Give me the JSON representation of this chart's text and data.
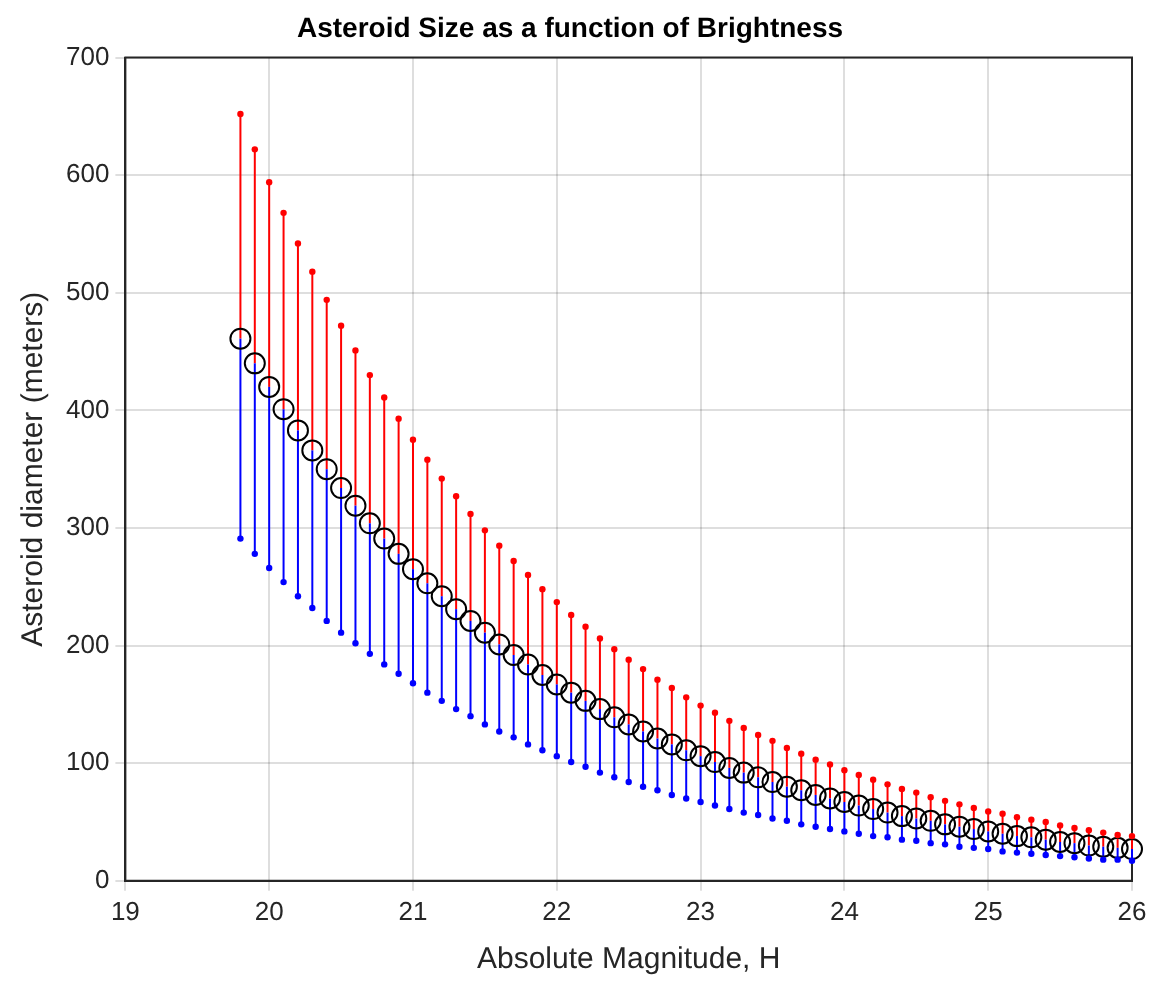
{
  "chart_data": {
    "type": "scatter",
    "title": "Asteroid Size as a function of Brightness",
    "xlabel": "Absolute Magnitude, H",
    "ylabel": "Asteroid diameter (meters)",
    "x": [
      19.8,
      19.9,
      20.0,
      20.1,
      20.2,
      20.3,
      20.4,
      20.5,
      20.6,
      20.7,
      20.8,
      20.9,
      21.0,
      21.1,
      21.2,
      21.3,
      21.4,
      21.5,
      21.6,
      21.7,
      21.8,
      21.9,
      22.0,
      22.1,
      22.2,
      22.3,
      22.4,
      22.5,
      22.6,
      22.7,
      22.8,
      22.9,
      23.0,
      23.1,
      23.2,
      23.3,
      23.4,
      23.5,
      23.6,
      23.7,
      23.8,
      23.9,
      24.0,
      24.1,
      24.2,
      24.3,
      24.4,
      24.5,
      24.6,
      24.7,
      24.8,
      24.9,
      25.0,
      25.1,
      25.2,
      25.3,
      25.4,
      25.5,
      25.6,
      25.7,
      25.8,
      25.9,
      26.0
    ],
    "series": [
      {
        "color": "#ff0000",
        "values": [
          652,
          622,
          594,
          568,
          542,
          518,
          494,
          472,
          451,
          430,
          411,
          393,
          375,
          358,
          342,
          327,
          312,
          298,
          285,
          272,
          260,
          248,
          237,
          226,
          216,
          206,
          197,
          188,
          180,
          171,
          164,
          156,
          149,
          143,
          136,
          130,
          124,
          119,
          113,
          108,
          103,
          99,
          94,
          90,
          86,
          82,
          78,
          75,
          71,
          68,
          65,
          62,
          59,
          57,
          54,
          52,
          50,
          47,
          45,
          43,
          41,
          39,
          38
        ],
        "errors": [
          [
            461,
            652
          ],
          [
            440,
            622
          ],
          [
            420,
            594
          ],
          [
            401,
            568
          ],
          [
            383,
            542
          ],
          [
            366,
            518
          ],
          [
            350,
            494
          ],
          [
            334,
            472
          ],
          [
            319,
            451
          ],
          [
            304,
            430
          ],
          [
            291,
            411
          ],
          [
            278,
            393
          ],
          [
            265,
            375
          ],
          [
            253,
            358
          ],
          [
            242,
            342
          ],
          [
            231,
            327
          ],
          [
            221,
            312
          ],
          [
            211,
            298
          ],
          [
            201,
            285
          ],
          [
            192,
            272
          ],
          [
            184,
            260
          ],
          [
            175,
            248
          ],
          [
            167,
            237
          ],
          [
            160,
            226
          ],
          [
            153,
            216
          ],
          [
            146,
            206
          ],
          [
            139,
            197
          ],
          [
            133,
            188
          ],
          [
            127,
            180
          ],
          [
            121,
            171
          ],
          [
            116,
            164
          ],
          [
            111,
            156
          ],
          [
            106,
            149
          ],
          [
            101,
            143
          ],
          [
            96,
            136
          ],
          [
            92,
            130
          ],
          [
            88,
            124
          ],
          [
            84,
            119
          ],
          [
            80,
            113
          ],
          [
            77,
            108
          ],
          [
            73,
            103
          ],
          [
            70,
            99
          ],
          [
            67,
            94
          ],
          [
            64,
            90
          ],
          [
            61,
            86
          ],
          [
            58,
            82
          ],
          [
            55,
            78
          ],
          [
            53,
            75
          ],
          [
            51,
            71
          ],
          [
            48,
            68
          ],
          [
            46,
            65
          ],
          [
            44,
            62
          ],
          [
            42,
            59
          ],
          [
            40,
            57
          ],
          [
            38,
            54
          ],
          [
            37,
            52
          ],
          [
            35,
            50
          ],
          [
            33,
            47
          ],
          [
            32,
            45
          ],
          [
            30,
            43
          ],
          [
            29,
            41
          ],
          [
            28,
            39
          ],
          [
            27,
            38
          ]
        ]
      },
      {
        "color": "#0000ff",
        "values": [
          291,
          278,
          266,
          254,
          242,
          232,
          221,
          211,
          202,
          193,
          184,
          176,
          168,
          160,
          153,
          146,
          140,
          133,
          127,
          122,
          116,
          111,
          106,
          101,
          97,
          92,
          88,
          84,
          80,
          77,
          73,
          70,
          67,
          64,
          61,
          58,
          56,
          53,
          51,
          48,
          46,
          44,
          42,
          40,
          38,
          37,
          35,
          34,
          32,
          31,
          29,
          28,
          27,
          25,
          24,
          23,
          22,
          21,
          20,
          19,
          18,
          18,
          17
        ],
        "errors": [
          [
            291,
            461
          ],
          [
            278,
            440
          ],
          [
            266,
            420
          ],
          [
            254,
            401
          ],
          [
            242,
            383
          ],
          [
            232,
            366
          ],
          [
            221,
            350
          ],
          [
            211,
            334
          ],
          [
            202,
            319
          ],
          [
            193,
            304
          ],
          [
            184,
            291
          ],
          [
            176,
            278
          ],
          [
            168,
            265
          ],
          [
            160,
            253
          ],
          [
            153,
            242
          ],
          [
            146,
            231
          ],
          [
            140,
            221
          ],
          [
            133,
            211
          ],
          [
            127,
            201
          ],
          [
            122,
            192
          ],
          [
            116,
            184
          ],
          [
            111,
            175
          ],
          [
            106,
            167
          ],
          [
            101,
            160
          ],
          [
            97,
            153
          ],
          [
            92,
            146
          ],
          [
            88,
            139
          ],
          [
            84,
            133
          ],
          [
            80,
            127
          ],
          [
            77,
            121
          ],
          [
            73,
            116
          ],
          [
            70,
            111
          ],
          [
            67,
            106
          ],
          [
            64,
            101
          ],
          [
            61,
            96
          ],
          [
            58,
            92
          ],
          [
            56,
            88
          ],
          [
            53,
            84
          ],
          [
            51,
            80
          ],
          [
            48,
            77
          ],
          [
            46,
            73
          ],
          [
            44,
            70
          ],
          [
            42,
            67
          ],
          [
            40,
            64
          ],
          [
            38,
            61
          ],
          [
            37,
            58
          ],
          [
            35,
            55
          ],
          [
            34,
            53
          ],
          [
            32,
            51
          ],
          [
            31,
            48
          ],
          [
            29,
            46
          ],
          [
            28,
            44
          ],
          [
            27,
            42
          ],
          [
            25,
            40
          ],
          [
            24,
            38
          ],
          [
            23,
            37
          ],
          [
            22,
            35
          ],
          [
            21,
            33
          ],
          [
            20,
            32
          ],
          [
            19,
            30
          ],
          [
            18,
            29
          ],
          [
            18,
            28
          ],
          [
            17,
            27
          ]
        ]
      },
      {
        "color": "#000000",
        "values": [
          461,
          440,
          420,
          401,
          383,
          366,
          350,
          334,
          319,
          304,
          291,
          278,
          265,
          253,
          242,
          231,
          221,
          211,
          201,
          192,
          184,
          175,
          167,
          160,
          153,
          146,
          139,
          133,
          127,
          121,
          116,
          111,
          106,
          101,
          96,
          92,
          88,
          84,
          80,
          77,
          73,
          70,
          67,
          64,
          61,
          58,
          55,
          53,
          51,
          48,
          46,
          44,
          42,
          40,
          38,
          37,
          35,
          33,
          32,
          30,
          29,
          28,
          27
        ]
      }
    ],
    "xlim": [
      19,
      26
    ],
    "xticks": [
      19,
      20,
      21,
      22,
      23,
      24,
      25,
      26
    ],
    "ylim": [
      0,
      700
    ],
    "yticks": [
      0,
      100,
      200,
      300,
      400,
      500,
      600,
      700
    ],
    "grid": true,
    "marker": "circle"
  }
}
